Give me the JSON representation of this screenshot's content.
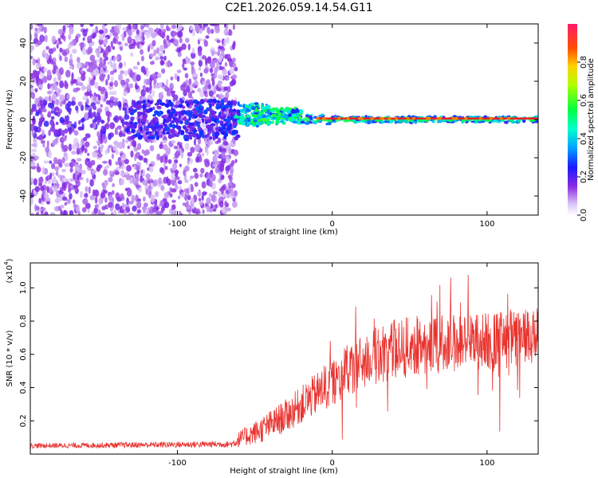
{
  "title": "C2E1.2026.059.14.54.G11",
  "chart_data": [
    {
      "type": "heatmap",
      "name": "spectrogram",
      "xlabel": "Height of straight line (km)",
      "ylabel": "Frequency (Hz)",
      "xlim": [
        -195,
        133
      ],
      "ylim": [
        -50,
        50
      ],
      "xticks": [
        -100,
        0,
        100
      ],
      "xtick_labels": [
        "-100",
        "0",
        "100"
      ],
      "yticks": [
        -40,
        -20,
        0,
        20,
        40
      ],
      "ytick_labels": [
        "-40",
        "-20",
        "0",
        "20",
        "40"
      ],
      "colorbar": {
        "label": "Normalized spectral amplitude",
        "range": [
          0,
          1
        ],
        "ticks": [
          0.0,
          0.2,
          0.4,
          0.6,
          0.8
        ],
        "tick_labels": [
          "0.0",
          "0.2",
          "0.4",
          "0.6",
          "0.8"
        ]
      },
      "description_segments": [
        {
          "x_range": [
            -195,
            -65
          ],
          "freq_spread": 50,
          "amplitude": 0.1
        },
        {
          "x_range": [
            -65,
            -20
          ],
          "freq_spread": 8,
          "amplitude": 0.45
        },
        {
          "x_range": [
            -20,
            133
          ],
          "freq_spread": 2,
          "amplitude": 0.95
        }
      ]
    },
    {
      "type": "line",
      "name": "snr",
      "xlabel": "Height of straight line (km)",
      "ylabel": "SNR (10 * v/v)",
      "yscale_label": "(x10",
      "yscale_exp": "4",
      "xlim": [
        -195,
        133
      ],
      "ylim": [
        0,
        1.15
      ],
      "xticks": [
        -100,
        0,
        100
      ],
      "xtick_labels": [
        "-100",
        "0",
        "100"
      ],
      "yticks": [
        0.2,
        0.4,
        0.6,
        0.8,
        1.0
      ],
      "ytick_labels": [
        "0.2",
        "0.4",
        "0.6",
        "0.8",
        "1.0"
      ],
      "color": "#e8332f",
      "envelope_x": [
        -195,
        -65,
        -60,
        -45,
        -30,
        -15,
        0,
        10,
        25,
        40,
        60,
        80,
        100,
        120,
        133
      ],
      "envelope_y": [
        0.05,
        0.06,
        0.09,
        0.15,
        0.23,
        0.33,
        0.43,
        0.5,
        0.58,
        0.63,
        0.66,
        0.67,
        0.68,
        0.69,
        0.7
      ],
      "noise_amplitude": [
        0.015,
        0.02,
        0.05,
        0.08,
        0.1,
        0.12,
        0.15,
        0.16,
        0.17,
        0.18,
        0.18,
        0.18,
        0.18,
        0.18,
        0.18
      ]
    }
  ]
}
